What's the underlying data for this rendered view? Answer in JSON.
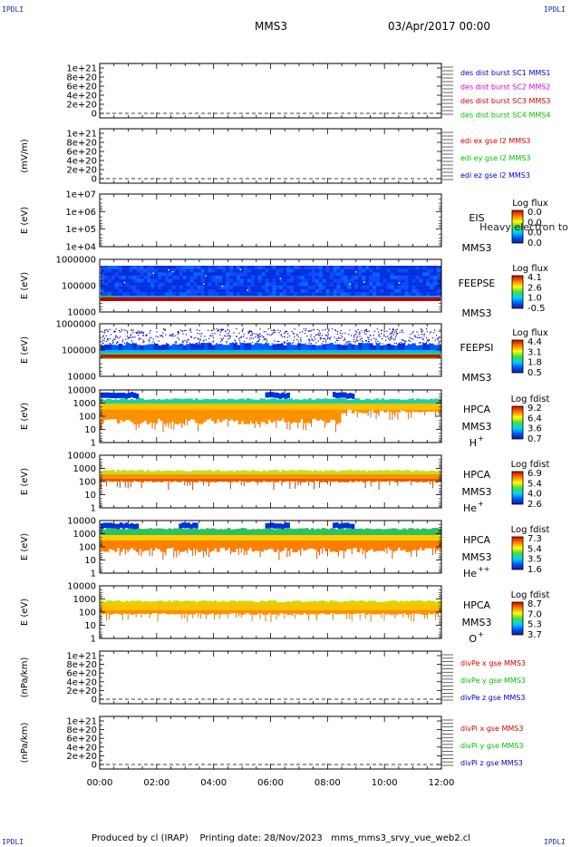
{
  "header": {
    "corner_tl": "IPDLI",
    "corner_tr": "IPDLI",
    "corner_bl": "IPDLI",
    "corner_br": "IPDLI",
    "mission": "MMS3",
    "date": "03/Apr/2017 00:00"
  },
  "footer": {
    "produced_by": "Produced by cl (IRAP)",
    "printing_date": "Printing date: 28/Nov/2023",
    "script": "mms_mms3_srvy_vue_web2.cl"
  },
  "chart_data": {
    "type": "stack",
    "x_ticks": [
      "00:00",
      "02:00",
      "04:00",
      "06:00",
      "08:00",
      "10:00",
      "12:00"
    ],
    "panels": [
      {
        "id": "des",
        "kind": "line",
        "ylabel": "",
        "yticks": [
          "1e+21",
          "8e+20",
          "6e+20",
          "4e+20",
          "2e+20",
          "0"
        ],
        "legend": [
          {
            "text": "des dist burst SC1 MMS1",
            "color": "#0000cc"
          },
          {
            "text": "des dist burst SC2 MMS2",
            "color": "#d400d4"
          },
          {
            "text": "des dist burst SC3 MMS3",
            "color": "#d40000"
          },
          {
            "text": "des dist burst SC4 MMS4",
            "color": "#00c000"
          }
        ]
      },
      {
        "id": "edi",
        "kind": "line",
        "ylabel": "(mV/m)",
        "yticks": [
          "1e+21",
          "8e+20",
          "6e+20",
          "4e+20",
          "2e+20",
          "0"
        ],
        "legend": [
          {
            "text": "edi ex gse l2 MMS3",
            "color": "#d40000"
          },
          {
            "text": "edi ey gse l2 MMS3",
            "color": "#00c000"
          },
          {
            "text": "edi ez gse l2 MMS3",
            "color": "#0000cc"
          }
        ]
      },
      {
        "id": "eis",
        "kind": "spec",
        "ylabel": "E (eV)",
        "yticks": [
          "1e+07",
          "1e+06",
          "1e+05",
          "1e+04"
        ],
        "instrument": "EIS",
        "sc": "MMS3",
        "species": "",
        "overlay": "Heavy electron to",
        "colorbar_title": "Log flux",
        "cbar": [
          "0.0",
          "0.0",
          "0.0",
          "0.0"
        ]
      },
      {
        "id": "feepse",
        "kind": "spec",
        "ylabel": "E (eV)",
        "yticks": [
          "1000000",
          "100000",
          "10000"
        ],
        "instrument": "FEEPSE",
        "sc": "MMS3",
        "species": "",
        "colorbar_title": "Log flux",
        "cbar": [
          "4.1",
          "2.6",
          "1.0",
          "-0.5"
        ]
      },
      {
        "id": "feepsi",
        "kind": "spec",
        "ylabel": "E (eV)",
        "yticks": [
          "1000000",
          "100000",
          "10000"
        ],
        "instrument": "FEEPSI",
        "sc": "MMS3",
        "species": "",
        "colorbar_title": "Log flux",
        "cbar": [
          "4.4",
          "3.1",
          "1.8",
          "0.5"
        ]
      },
      {
        "id": "hpca_h",
        "kind": "spec",
        "ylabel": "E (eV)",
        "yticks": [
          "10000",
          "1000",
          "100",
          "10",
          "1"
        ],
        "instrument": "HPCA",
        "sc": "MMS3",
        "species": "H",
        "sup": "+",
        "colorbar_title": "Log fdist",
        "cbar": [
          "9.2",
          "6.4",
          "3.6",
          "0.7"
        ]
      },
      {
        "id": "hpca_he",
        "kind": "spec",
        "ylabel": "E (eV)",
        "yticks": [
          "10000",
          "1000",
          "100",
          "10",
          "1"
        ],
        "instrument": "HPCA",
        "sc": "MMS3",
        "species": "He",
        "sup": "+",
        "colorbar_title": "Log fdist",
        "cbar": [
          "6.9",
          "5.4",
          "4.0",
          "2.6"
        ]
      },
      {
        "id": "hpca_hepp",
        "kind": "spec",
        "ylabel": "E (eV)",
        "yticks": [
          "10000",
          "1000",
          "100",
          "10",
          "1"
        ],
        "instrument": "HPCA",
        "sc": "MMS3",
        "species": "He",
        "sup": "++",
        "colorbar_title": "Log fdist",
        "cbar": [
          "7.3",
          "5.4",
          "3.5",
          "1.6"
        ]
      },
      {
        "id": "hpca_o",
        "kind": "spec",
        "ylabel": "E (eV)",
        "yticks": [
          "10000",
          "1000",
          "100",
          "10",
          "1"
        ],
        "instrument": "HPCA",
        "sc": "MMS3",
        "species": "O",
        "sup": "+",
        "colorbar_title": "Log fdist",
        "cbar": [
          "8.7",
          "7.0",
          "5.3",
          "3.7"
        ]
      },
      {
        "id": "divpe",
        "kind": "line",
        "ylabel": "(nPa/km)",
        "yticks": [
          "1e+21",
          "8e+20",
          "6e+20",
          "4e+20",
          "2e+20",
          "0"
        ],
        "legend": [
          {
            "text": "divPe x gse MMS3",
            "color": "#d40000"
          },
          {
            "text": "divPe y gse MMS3",
            "color": "#00c000"
          },
          {
            "text": "divPe z gse MMS3",
            "color": "#0000cc"
          }
        ]
      },
      {
        "id": "divpi",
        "kind": "line",
        "ylabel": "(nPa/km)",
        "yticks": [
          "1e+21",
          "8e+20",
          "6e+20",
          "4e+20",
          "2e+20",
          "0"
        ],
        "legend": [
          {
            "text": "divPi x gse MMS3",
            "color": "#d40000"
          },
          {
            "text": "divPi y gse MMS3",
            "color": "#00c000"
          },
          {
            "text": "divPi z gse MMS3",
            "color": "#0000cc"
          }
        ]
      }
    ]
  }
}
